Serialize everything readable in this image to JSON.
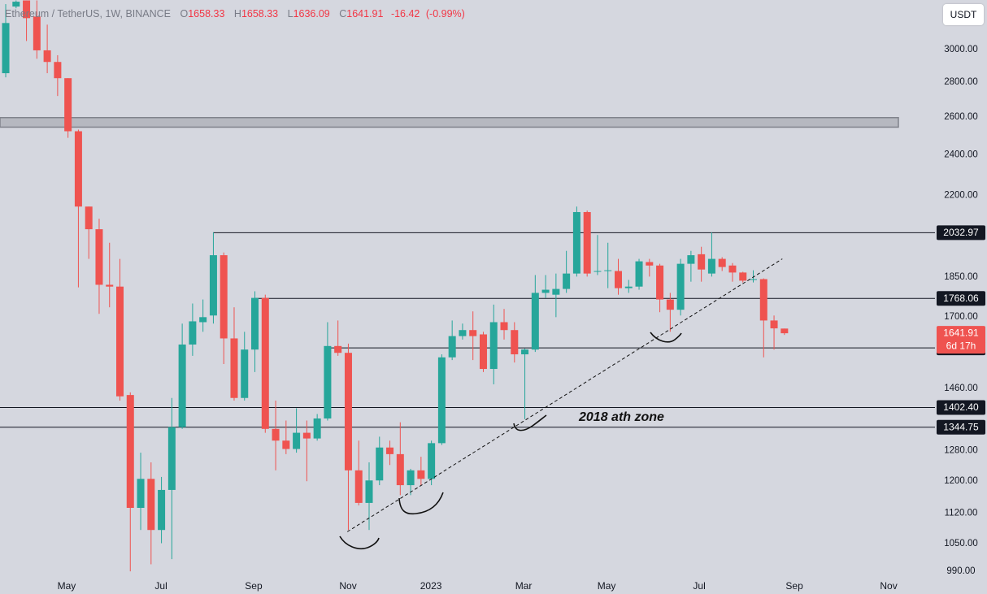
{
  "chart_data": {
    "type": "candlestick",
    "title": "Ethereum / TetherUS, 1W, BINANCE",
    "currency": "USDT",
    "log_scale": true,
    "grid": false,
    "up_color": "#26a69a",
    "down_color": "#ef5350",
    "open": [
      2853,
      3287,
      3330,
      3218,
      2995,
      2922,
      2823,
      2522,
      2149,
      2048,
      1820,
      1813,
      1440,
      1133,
      1205,
      1081,
      1177,
      1345,
      1603,
      1681,
      1705,
      1938,
      1624,
      1431,
      1586,
      1770,
      1340,
      1307,
      1284,
      1329,
      1313,
      1370,
      1598,
      1575,
      1227,
      1145,
      1201,
      1288,
      1270,
      1189,
      1227,
      1205,
      1300,
      1560,
      1632,
      1653,
      1638,
      1522,
      1681,
      1653,
      1570,
      1586,
      1789,
      1782,
      1804,
      1864,
      2124,
      1871,
      1874,
      1874,
      1807,
      1813,
      1910,
      1896,
      1764,
      1726,
      1903,
      1942,
      1864,
      1923,
      1896,
      1868,
      1839,
      1842,
      1687,
      1658.33
    ],
    "high": [
      3304,
      3330,
      3330,
      3330,
      3163,
      2964,
      2823,
      2531,
      2149,
      2094,
      1990,
      1923,
      1448,
      1274,
      1248,
      1210,
      1431,
      1676,
      1749,
      1764,
      2034,
      1949,
      1735,
      1647,
      1795,
      1782,
      1423,
      1364,
      1400,
      1364,
      1383,
      1681,
      1687,
      1606,
      1307,
      1248,
      1318,
      1307,
      1359,
      1231,
      1263,
      1307,
      1570,
      1687,
      1676,
      1720,
      1647,
      1745,
      1729,
      1681,
      1590,
      1858,
      1858,
      1864,
      1956,
      2149,
      2131,
      2023,
      1990,
      1923,
      1839,
      1923,
      1923,
      1903,
      1789,
      1923,
      1956,
      1973,
      2034,
      1930,
      1906,
      1871,
      1877,
      1845,
      1705,
      1658.33
    ],
    "low": [
      2828,
      3275,
      3055,
      2942,
      2853,
      2718,
      2487,
      1810,
      1923,
      1711,
      1735,
      1423,
      990,
      1081,
      1005,
      1051,
      1016,
      1340,
      1565,
      1647,
      1676,
      1538,
      1423,
      1423,
      1512,
      1329,
      1227,
      1270,
      1274,
      1199,
      1307,
      1364,
      1565,
      1081,
      1139,
      1081,
      1189,
      1241,
      1164,
      1164,
      1189,
      1189,
      1295,
      1551,
      1620,
      1551,
      1512,
      1473,
      1620,
      1543,
      1368,
      1578,
      1770,
      1699,
      1789,
      1852,
      1852,
      1858,
      1807,
      1782,
      1789,
      1801,
      1852,
      1717,
      1647,
      1705,
      1832,
      1832,
      1852,
      1874,
      1832,
      1829,
      1829,
      1560,
      1586,
      1636.09
    ],
    "close": [
      3174,
      3321,
      3207,
      2995,
      2922,
      2823,
      2522,
      2149,
      2048,
      1820,
      1813,
      1436,
      1133,
      1205,
      1081,
      1177,
      1345,
      1603,
      1684,
      1699,
      1938,
      1624,
      1431,
      1586,
      1770,
      1340,
      1307,
      1284,
      1329,
      1313,
      1370,
      1598,
      1575,
      1227,
      1145,
      1201,
      1288,
      1270,
      1189,
      1227,
      1205,
      1300,
      1560,
      1632,
      1653,
      1632,
      1522,
      1681,
      1653,
      1570,
      1586,
      1789,
      1801,
      1804,
      1864,
      2124,
      1864,
      1874,
      1877,
      1807,
      1813,
      1913,
      1896,
      1764,
      1726,
      1903,
      1938,
      1880,
      1923,
      1890,
      1868,
      1836,
      1842,
      1687,
      1659,
      1641.91
    ],
    "ylim": [
      975,
      3333
    ],
    "yticks": [
      {
        "value": 3000,
        "label": "3000.00"
      },
      {
        "value": 2800,
        "label": "2800.00"
      },
      {
        "value": 2600,
        "label": "2600.00"
      },
      {
        "value": 2400,
        "label": "2400.00"
      },
      {
        "value": 2200,
        "label": "2200.00"
      },
      {
        "value": 1850,
        "label": "1850.00"
      },
      {
        "value": 1700,
        "label": "1700.00"
      },
      {
        "value": 1460,
        "label": "1460.00"
      },
      {
        "value": 1280,
        "label": "1280.00"
      },
      {
        "value": 1200,
        "label": "1200.00"
      },
      {
        "value": 1120,
        "label": "1120.00"
      },
      {
        "value": 1050,
        "label": "1050.00"
      },
      {
        "value": 990,
        "label": "990.00"
      }
    ],
    "xlim": [
      -0.55,
      89.5
    ],
    "xticks": [
      {
        "value": 5.87,
        "label": "May"
      },
      {
        "value": 14.96,
        "label": "Jul"
      },
      {
        "value": 23.88,
        "label": "Sep"
      },
      {
        "value": 32.97,
        "label": "Nov"
      },
      {
        "value": 40.96,
        "label": "2023"
      },
      {
        "value": 49.88,
        "label": "Mar"
      },
      {
        "value": 57.87,
        "label": "May"
      },
      {
        "value": 66.8,
        "label": "Jul"
      },
      {
        "value": 75.96,
        "label": "Sep"
      },
      {
        "value": 85.04,
        "label": "Nov"
      }
    ],
    "legend_labels": [
      "O",
      "H",
      "L",
      "C"
    ],
    "change": -16.42,
    "change_percent": {
      "value": -0.99,
      "label": "(-0.99%)"
    },
    "levels": [
      2032.97,
      1768.06,
      1591.63,
      {
        "value": 1402.4,
        "label": "1402.40"
      },
      1344.75
    ],
    "countdown": "6d 17h",
    "zone": [
      2544,
      2596
    ],
    "trendline": {
      "x": [
        32.9,
        74.8
      ],
      "y": [
        1077,
        1923
      ]
    },
    "annotation": "2018 ath zone"
  }
}
